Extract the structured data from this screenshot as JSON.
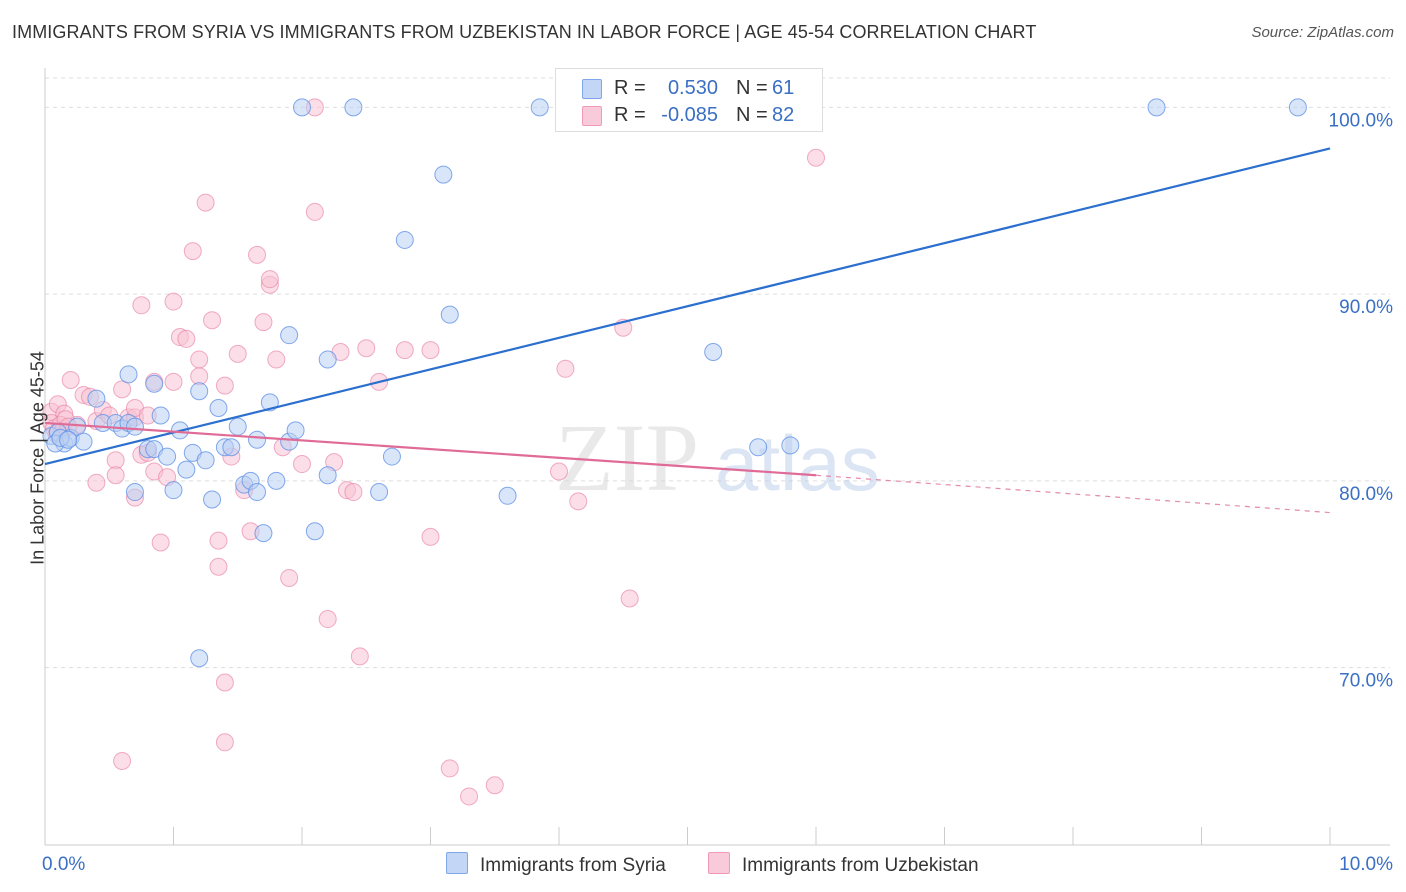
{
  "title": "IMMIGRANTS FROM SYRIA VS IMMIGRANTS FROM UZBEKISTAN IN LABOR FORCE | AGE 45-54 CORRELATION CHART",
  "source": "Source: ZipAtlas.com",
  "watermark": {
    "zip": "ZIP",
    "atlas": "atlas"
  },
  "legend": {
    "r_label": "R =",
    "n_label": "N =",
    "syria": {
      "r": "0.530",
      "n": "61"
    },
    "uzbekistan": {
      "r": "-0.085",
      "n": "82"
    }
  },
  "chart_data": {
    "type": "scatter",
    "title": "IMMIGRANTS FROM SYRIA VS IMMIGRANTS FROM UZBEKISTAN IN LABOR FORCE | AGE 45-54 CORRELATION CHART",
    "xlabel": "",
    "ylabel": "In Labor Force | Age 45-54",
    "xlim": [
      0,
      10
    ],
    "ylim": [
      60.5,
      102
    ],
    "x_tick_labels": [
      "0.0%",
      "10.0%"
    ],
    "y_ticks": [
      70,
      80,
      90,
      100
    ],
    "y_tick_labels": [
      "70.0%",
      "80.0%",
      "90.0%",
      "100.0%"
    ],
    "colors": {
      "syria": "#5b8ee6",
      "syria_fill": "#b9cff3",
      "syria_line": "#2b6fcf",
      "uzbekistan": "#e87aa0",
      "uzbekistan_fill": "#f7c3d4",
      "uzbekistan_line": "#e06b96"
    },
    "series": [
      {
        "name": "Immigrants from Syria",
        "trend": {
          "x0": 0,
          "y0": 80.9,
          "x1": 10,
          "y1": 97.8
        },
        "points": [
          [
            0.05,
            82.4
          ],
          [
            0.1,
            82.6
          ],
          [
            0.15,
            82.0
          ],
          [
            0.2,
            82.3
          ],
          [
            0.25,
            82.9
          ],
          [
            0.3,
            82.1
          ],
          [
            0.4,
            84.4
          ],
          [
            0.45,
            83.1
          ],
          [
            0.55,
            83.1
          ],
          [
            0.6,
            82.8
          ],
          [
            0.65,
            83.1
          ],
          [
            0.7,
            82.9
          ],
          [
            0.65,
            85.7
          ],
          [
            0.7,
            79.4
          ],
          [
            0.8,
            81.7
          ],
          [
            0.85,
            81.7
          ],
          [
            0.85,
            85.2
          ],
          [
            0.9,
            83.5
          ],
          [
            0.95,
            81.3
          ],
          [
            1.0,
            79.5
          ],
          [
            1.05,
            82.7
          ],
          [
            1.1,
            80.6
          ],
          [
            1.15,
            81.5
          ],
          [
            1.2,
            84.8
          ],
          [
            1.25,
            81.1
          ],
          [
            1.3,
            79.0
          ],
          [
            1.35,
            83.9
          ],
          [
            1.4,
            81.8
          ],
          [
            1.45,
            81.8
          ],
          [
            1.5,
            82.9
          ],
          [
            1.55,
            79.8
          ],
          [
            1.6,
            80.0
          ],
          [
            1.65,
            79.4
          ],
          [
            1.65,
            82.2
          ],
          [
            1.7,
            77.2
          ],
          [
            1.75,
            84.2
          ],
          [
            1.8,
            80.0
          ],
          [
            1.9,
            82.1
          ],
          [
            1.9,
            87.8
          ],
          [
            1.95,
            82.7
          ],
          [
            2.1,
            77.3
          ],
          [
            2.2,
            80.3
          ],
          [
            2.2,
            86.5
          ],
          [
            2.6,
            79.4
          ],
          [
            2.7,
            81.3
          ],
          [
            2.8,
            92.9
          ],
          [
            3.1,
            96.4
          ],
          [
            3.15,
            88.9
          ],
          [
            3.6,
            79.2
          ],
          [
            5.2,
            86.9
          ],
          [
            5.55,
            81.8
          ],
          [
            5.8,
            81.9
          ],
          [
            2.0,
            100
          ],
          [
            2.4,
            100
          ],
          [
            3.85,
            100
          ],
          [
            8.65,
            100
          ],
          [
            9.75,
            100
          ],
          [
            1.2,
            70.5
          ],
          [
            0.08,
            82.0
          ],
          [
            0.12,
            82.3
          ],
          [
            0.18,
            82.2
          ]
        ]
      },
      {
        "name": "Immigrants from Uzbekistan",
        "trend": {
          "x0": 0,
          "y0": 83.1,
          "x1": 6.0,
          "y1": 80.3
        },
        "trend_extension": {
          "x0": 6.0,
          "y0": 80.3,
          "x1": 10,
          "y1": 78.3
        },
        "points": [
          [
            0.05,
            83.7
          ],
          [
            0.1,
            84.1
          ],
          [
            0.15,
            83.6
          ],
          [
            0.2,
            85.4
          ],
          [
            0.25,
            83.0
          ],
          [
            0.3,
            84.6
          ],
          [
            0.35,
            84.5
          ],
          [
            0.4,
            83.2
          ],
          [
            0.4,
            79.9
          ],
          [
            0.45,
            83.8
          ],
          [
            0.5,
            83.5
          ],
          [
            0.55,
            81.1
          ],
          [
            0.55,
            80.3
          ],
          [
            0.6,
            84.9
          ],
          [
            0.65,
            83.4
          ],
          [
            0.7,
            79.1
          ],
          [
            0.7,
            83.4
          ],
          [
            0.7,
            83.9
          ],
          [
            0.75,
            81.4
          ],
          [
            0.75,
            89.4
          ],
          [
            0.8,
            83.5
          ],
          [
            0.8,
            81.5
          ],
          [
            0.85,
            85.3
          ],
          [
            0.85,
            80.5
          ],
          [
            0.9,
            76.7
          ],
          [
            0.95,
            80.2
          ],
          [
            1.0,
            85.3
          ],
          [
            1.0,
            89.6
          ],
          [
            1.05,
            87.7
          ],
          [
            1.1,
            87.6
          ],
          [
            1.15,
            92.3
          ],
          [
            1.2,
            85.6
          ],
          [
            1.2,
            86.5
          ],
          [
            1.25,
            94.9
          ],
          [
            1.3,
            88.6
          ],
          [
            1.35,
            75.4
          ],
          [
            1.35,
            76.8
          ],
          [
            1.4,
            85.1
          ],
          [
            1.45,
            81.3
          ],
          [
            1.5,
            86.8
          ],
          [
            1.55,
            79.5
          ],
          [
            1.6,
            77.3
          ],
          [
            1.65,
            92.1
          ],
          [
            1.7,
            88.5
          ],
          [
            1.75,
            90.5
          ],
          [
            1.75,
            90.8
          ],
          [
            1.8,
            86.5
          ],
          [
            1.85,
            81.8
          ],
          [
            1.9,
            74.8
          ],
          [
            2.0,
            80.9
          ],
          [
            2.1,
            94.4
          ],
          [
            2.2,
            72.6
          ],
          [
            2.25,
            81.0
          ],
          [
            2.3,
            86.9
          ],
          [
            2.35,
            79.5
          ],
          [
            2.4,
            79.4
          ],
          [
            2.45,
            70.6
          ],
          [
            2.5,
            87.1
          ],
          [
            2.6,
            85.3
          ],
          [
            2.8,
            87.0
          ],
          [
            3.0,
            87.0
          ],
          [
            3.0,
            77.0
          ],
          [
            3.15,
            64.6
          ],
          [
            3.3,
            63.1
          ],
          [
            3.5,
            63.7
          ],
          [
            4.0,
            80.5
          ],
          [
            4.05,
            86.0
          ],
          [
            4.15,
            78.9
          ],
          [
            4.5,
            88.2
          ],
          [
            4.55,
            73.7
          ],
          [
            1.4,
            69.2
          ],
          [
            1.4,
            66.0
          ],
          [
            0.6,
            65.0
          ],
          [
            6.0,
            97.3
          ],
          [
            2.1,
            100
          ],
          [
            0.05,
            83.1
          ],
          [
            0.07,
            82.8
          ],
          [
            0.09,
            82.5
          ],
          [
            0.12,
            83.0
          ],
          [
            0.14,
            82.7
          ],
          [
            0.16,
            83.3
          ],
          [
            0.18,
            82.9
          ]
        ]
      }
    ]
  }
}
